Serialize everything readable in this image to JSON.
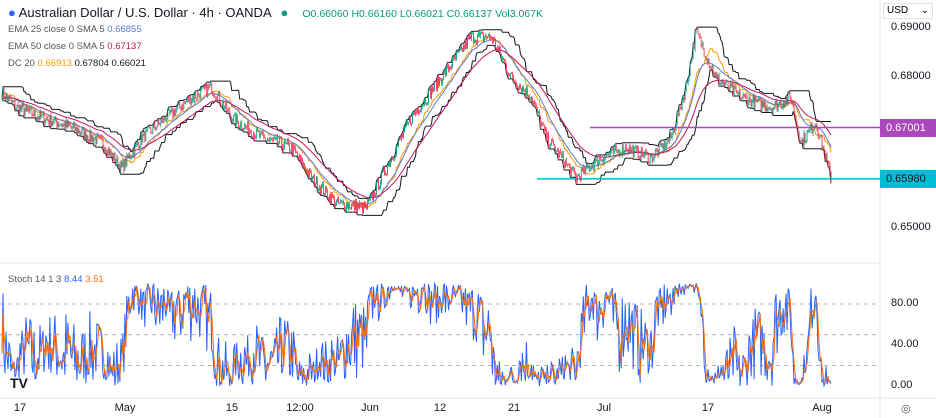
{
  "header": {
    "title": "Australian Dollar / U.S. Dollar · 4h · OANDA",
    "open": "O0.66060",
    "high": "H0.66160",
    "low": "L0.66021",
    "close": "C0.66137",
    "vol": "Vol3.067K",
    "ema25": {
      "label": "EMA 25 close 0 SMA 5",
      "value": "0.66855"
    },
    "ema50": {
      "label": "EMA 50 close 0 SMA 5",
      "value": "0.67137"
    },
    "dc": {
      "label": "DC 20",
      "v1": "0.66913",
      "v2": "0.67804",
      "v3": "0.66021"
    },
    "stoch": {
      "label": "Stoch 14 1 3",
      "k": "8.44",
      "d": "3.51"
    }
  },
  "currency": "USD",
  "colors": {
    "up": "#089981",
    "down": "#f23645",
    "ema25": "#5b7bd6",
    "ema50": "#c2185b",
    "dc_mid": "#ff9800",
    "dc_band": "#131722",
    "resistance": "#ab47bc",
    "support": "#00bcd4",
    "stoch_k": "#2962ff",
    "stoch_d": "#ff6d00"
  },
  "chart_data": {
    "type": "candlestick",
    "price_axis": {
      "ticks": [
        "0.69000",
        "0.68000",
        "0.65000"
      ],
      "range": [
        0.6455,
        0.6955
      ]
    },
    "stoch_axis": {
      "ticks": [
        "80.00",
        "40.00",
        "0.00"
      ],
      "range": [
        0,
        100
      ]
    },
    "x_labels": [
      "17",
      "May",
      "15",
      "12:00",
      "Jun",
      "12",
      "21",
      "Jul",
      "17",
      "Aug"
    ],
    "horizontal_lines": [
      {
        "label": "0.67001",
        "price": 0.67001,
        "color": "#ab47bc"
      },
      {
        "label": "0.65980",
        "price": 0.6598,
        "color": "#00bcd4"
      }
    ],
    "close_path_keypoints": [
      [
        0,
        0.677
      ],
      [
        3,
        0.674
      ],
      [
        8,
        0.672
      ],
      [
        14,
        0.67
      ],
      [
        20,
        0.667
      ],
      [
        24,
        0.662
      ],
      [
        28,
        0.668
      ],
      [
        33,
        0.672
      ],
      [
        38,
        0.676
      ],
      [
        42,
        0.678
      ],
      [
        46,
        0.672
      ],
      [
        52,
        0.668
      ],
      [
        58,
        0.666
      ],
      [
        62,
        0.66
      ],
      [
        67,
        0.655
      ],
      [
        73,
        0.654
      ],
      [
        77,
        0.662
      ],
      [
        82,
        0.672
      ],
      [
        88,
        0.68
      ],
      [
        94,
        0.688
      ],
      [
        98,
        0.688
      ],
      [
        102,
        0.68
      ],
      [
        106,
        0.676
      ],
      [
        109,
        0.668
      ],
      [
        115,
        0.66
      ],
      [
        120,
        0.664
      ],
      [
        125,
        0.666
      ],
      [
        130,
        0.664
      ],
      [
        134,
        0.668
      ],
      [
        137,
        0.678
      ],
      [
        139,
        0.689
      ],
      [
        143,
        0.68
      ],
      [
        148,
        0.676
      ],
      [
        154,
        0.674
      ],
      [
        158,
        0.676
      ],
      [
        160,
        0.667
      ],
      [
        163,
        0.671
      ],
      [
        166,
        0.6601
      ]
    ]
  }
}
